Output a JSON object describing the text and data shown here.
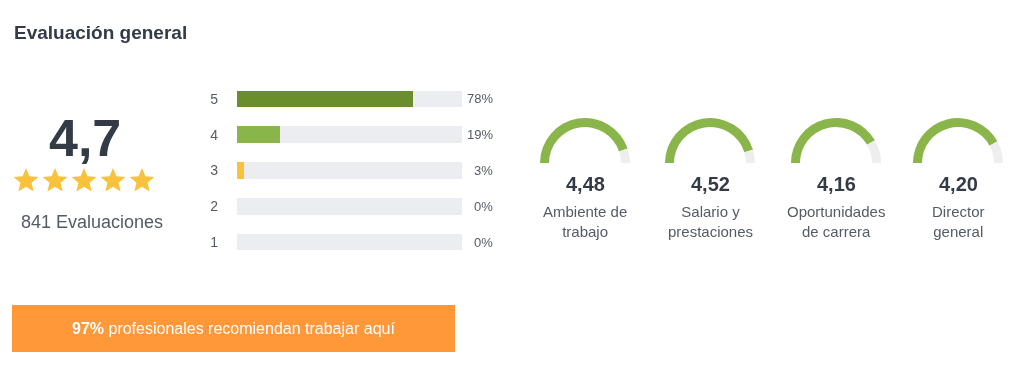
{
  "chart_data": [
    {
      "type": "other",
      "title": "Evaluación general",
      "annotations": [
        "4,7",
        "841 Evaluaciones",
        "97% profesionales recomiendan trabajar aquí"
      ]
    },
    {
      "type": "bar",
      "orientation": "horizontal",
      "stacked": true,
      "categories": [
        "5",
        "4",
        "3",
        "2",
        "1"
      ],
      "xlim": [
        0,
        100
      ],
      "tick_labels": "y",
      "series": [
        {
          "colors": [
            "#6a8e2b",
            "#8ab54a",
            "#f9c23c",
            "#8ab54a",
            "#8ab54a"
          ],
          "values": [
            78,
            19,
            3,
            0,
            0
          ],
          "value_labels": [
            "78%",
            "19%",
            "3%",
            "0%",
            "0%"
          ]
        },
        {
          "color": "#ecedf1",
          "values": [
            22,
            81,
            97,
            100,
            100
          ]
        }
      ]
    },
    {
      "type": "donut",
      "title": "4,48",
      "categories": [
        null,
        null
      ],
      "values": [
        89.6,
        10.4
      ],
      "colors": [
        "#8ab54a",
        "#eeeeee"
      ],
      "annotations": [
        "Ambiente de trabajo"
      ]
    },
    {
      "type": "donut",
      "title": "4,52",
      "categories": [
        null,
        null
      ],
      "values": [
        90.4,
        9.6
      ],
      "colors": [
        "#8ab54a",
        "#eeeeee"
      ],
      "annotations": [
        "Salario y prestaciones"
      ]
    },
    {
      "type": "donut",
      "title": "4,16",
      "categories": [
        null,
        null
      ],
      "values": [
        83.2,
        16.8
      ],
      "colors": [
        "#8ab54a",
        "#eeeeee"
      ],
      "annotations": [
        "Oportunidades de carrera"
      ]
    },
    {
      "type": "donut",
      "title": "4,20",
      "categories": [
        null,
        null
      ],
      "values": [
        84,
        16
      ],
      "colors": [
        "#8ab54a",
        "#eeeeee"
      ],
      "annotations": [
        "Director general"
      ]
    }
  ]
}
